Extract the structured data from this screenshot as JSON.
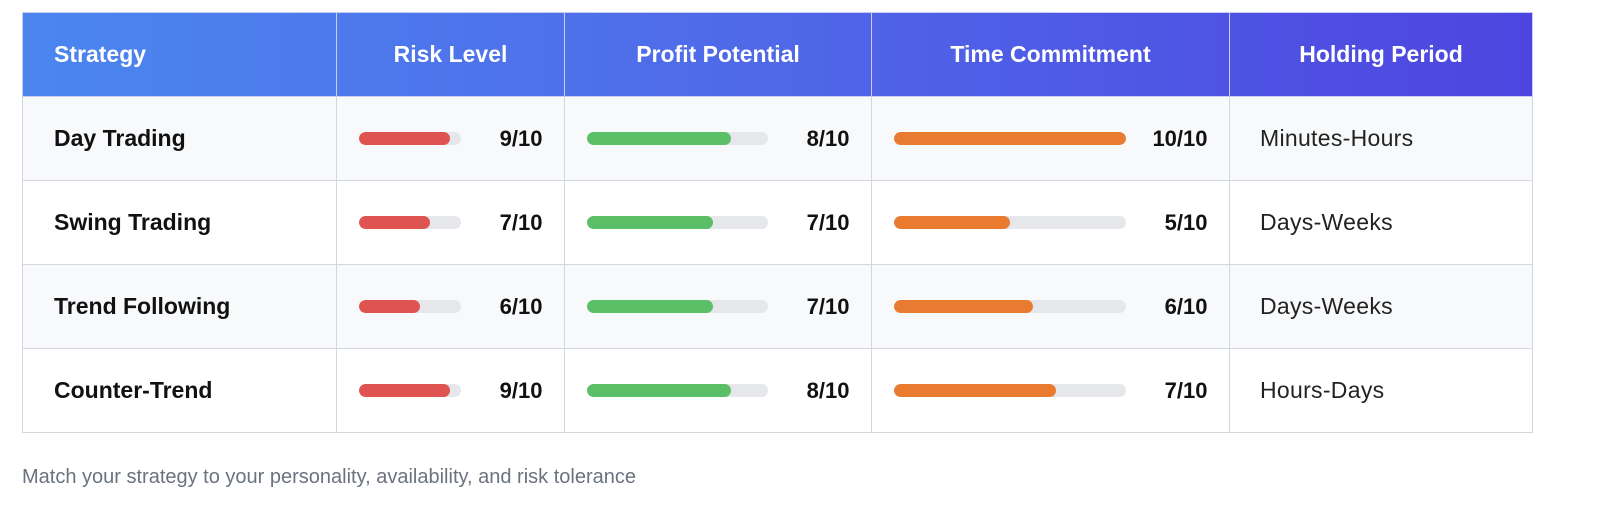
{
  "headers": [
    "Strategy",
    "Risk Level",
    "Profit Potential",
    "Time Commitment",
    "Holding Period"
  ],
  "colors": {
    "risk": "#df5350",
    "profit": "#5bbf67",
    "time": "#e97b31"
  },
  "rows": [
    {
      "strategy": "Day Trading",
      "risk": 9,
      "risk_label": "9/10",
      "profit": 8,
      "profit_label": "8/10",
      "time": 10,
      "time_label": "10/10",
      "period": "Minutes-Hours"
    },
    {
      "strategy": "Swing Trading",
      "risk": 7,
      "risk_label": "7/10",
      "profit": 7,
      "profit_label": "7/10",
      "time": 5,
      "time_label": "5/10",
      "period": "Days-Weeks"
    },
    {
      "strategy": "Trend Following",
      "risk": 6,
      "risk_label": "6/10",
      "profit": 7,
      "profit_label": "7/10",
      "time": 6,
      "time_label": "6/10",
      "period": "Days-Weeks"
    },
    {
      "strategy": "Counter-Trend",
      "risk": 9,
      "risk_label": "9/10",
      "profit": 8,
      "profit_label": "8/10",
      "time": 7,
      "time_label": "7/10",
      "period": "Hours-Days"
    }
  ],
  "scale_max": 10,
  "note": "Match your strategy to your personality, availability, and risk tolerance"
}
